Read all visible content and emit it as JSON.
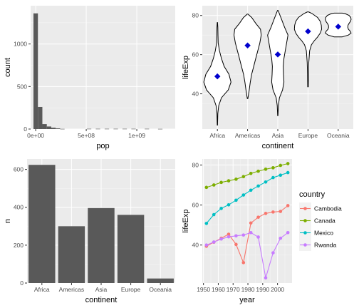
{
  "chart_data": [
    {
      "type": "bar",
      "subtype": "histogram",
      "xlabel": "pop",
      "ylabel": "count",
      "xlim": [
        -50000000,
        1380000000
      ],
      "ylim": [
        0,
        1450
      ],
      "x_ticks": [
        {
          "value": 0,
          "label": "0e+00"
        },
        {
          "value": 500000000,
          "label": "5e+08"
        },
        {
          "value": 1000000000,
          "label": "1e+09"
        }
      ],
      "y_ticks": [
        {
          "value": 0,
          "label": "0"
        },
        {
          "value": 500,
          "label": "500"
        },
        {
          "value": 1000,
          "label": "1000"
        }
      ],
      "bin_width": 44000000,
      "bins": [
        {
          "start": -22000000,
          "count": 1360
        },
        {
          "start": 22000000,
          "count": 260
        },
        {
          "start": 66000000,
          "count": 58
        },
        {
          "start": 110000000,
          "count": 30
        },
        {
          "start": 154000000,
          "count": 16
        },
        {
          "start": 198000000,
          "count": 8
        },
        {
          "start": 242000000,
          "count": 2
        },
        {
          "start": 506000000,
          "count": 3
        },
        {
          "start": 594000000,
          "count": 3
        },
        {
          "start": 682000000,
          "count": 3
        },
        {
          "start": 770000000,
          "count": 3
        },
        {
          "start": 858000000,
          "count": 3
        },
        {
          "start": 946000000,
          "count": 3
        },
        {
          "start": 1078000000,
          "count": 3
        },
        {
          "start": 1210000000,
          "count": 2
        }
      ],
      "bar_color": "#595959",
      "grid": true
    },
    {
      "type": "violin",
      "xlabel": "continent",
      "ylabel": "lifeExp",
      "categories": [
        "Africa",
        "Americas",
        "Asia",
        "Europe",
        "Oceania"
      ],
      "ylim": [
        22,
        85
      ],
      "y_ticks": [
        {
          "value": 40,
          "label": "40"
        },
        {
          "value": 60,
          "label": "60"
        },
        {
          "value": 80,
          "label": "80"
        }
      ],
      "means": [
        48.9,
        64.7,
        60.1,
        71.9,
        74.3
      ],
      "mean_marker_color": "#0000cd",
      "violins": [
        {
          "min": 23.6,
          "max": 76.4,
          "profile": [
            [
              24,
              0.01
            ],
            [
              30,
              0.03
            ],
            [
              34,
              0.1
            ],
            [
              38,
              0.3
            ],
            [
              42,
              0.8
            ],
            [
              46,
              1
            ],
            [
              50,
              0.85
            ],
            [
              54,
              0.5
            ],
            [
              58,
              0.3
            ],
            [
              62,
              0.15
            ],
            [
              66,
              0.06
            ],
            [
              70,
              0.04
            ],
            [
              74,
              0.03
            ],
            [
              76.4,
              0.01
            ]
          ]
        },
        {
          "min": 37.6,
          "max": 80.7,
          "profile": [
            [
              37.6,
              0.02
            ],
            [
              42,
              0.12
            ],
            [
              46,
              0.2
            ],
            [
              50,
              0.3
            ],
            [
              54,
              0.45
            ],
            [
              58,
              0.6
            ],
            [
              62,
              0.75
            ],
            [
              66,
              0.9
            ],
            [
              70,
              1
            ],
            [
              73,
              0.95
            ],
            [
              76,
              0.6
            ],
            [
              79,
              0.3
            ],
            [
              80.7,
              0.02
            ]
          ]
        },
        {
          "min": 28.8,
          "max": 82.6,
          "profile": [
            [
              28.8,
              0.01
            ],
            [
              34,
              0.04
            ],
            [
              38,
              0.12
            ],
            [
              42,
              0.35
            ],
            [
              46,
              0.45
            ],
            [
              50,
              0.42
            ],
            [
              54,
              0.4
            ],
            [
              58,
              0.45
            ],
            [
              62,
              0.55
            ],
            [
              66,
              0.65
            ],
            [
              70,
              0.75
            ],
            [
              74,
              0.5
            ],
            [
              78,
              0.28
            ],
            [
              82.6,
              0.02
            ]
          ]
        },
        {
          "min": 43.6,
          "max": 81.8,
          "profile": [
            [
              43.6,
              0.02
            ],
            [
              50,
              0.03
            ],
            [
              56,
              0.06
            ],
            [
              62,
              0.12
            ],
            [
              65,
              0.25
            ],
            [
              67,
              0.45
            ],
            [
              69,
              0.7
            ],
            [
              71,
              0.9
            ],
            [
              73,
              1
            ],
            [
              75,
              0.98
            ],
            [
              77,
              0.9
            ],
            [
              79,
              0.7
            ],
            [
              81,
              0.3
            ],
            [
              81.8,
              0.05
            ]
          ]
        },
        {
          "min": 69.1,
          "max": 81.2,
          "profile": [
            [
              69.1,
              0.3
            ],
            [
              70,
              0.75
            ],
            [
              71,
              0.95
            ],
            [
              72,
              0.88
            ],
            [
              73,
              0.75
            ],
            [
              74,
              0.7
            ],
            [
              75,
              0.72
            ],
            [
              76,
              0.8
            ],
            [
              77,
              0.9
            ],
            [
              78,
              0.95
            ],
            [
              79,
              0.92
            ],
            [
              80,
              0.8
            ],
            [
              81,
              0.5
            ],
            [
              81.2,
              0.3
            ]
          ]
        }
      ],
      "grid": true
    },
    {
      "type": "bar",
      "xlabel": "continent",
      "ylabel": "n",
      "categories": [
        "Africa",
        "Americas",
        "Asia",
        "Europe",
        "Oceania"
      ],
      "values": [
        624,
        300,
        396,
        360,
        24
      ],
      "ylim": [
        0,
        655
      ],
      "y_ticks": [
        {
          "value": 0,
          "label": "0"
        },
        {
          "value": 200,
          "label": "200"
        },
        {
          "value": 400,
          "label": "400"
        },
        {
          "value": 600,
          "label": "600"
        }
      ],
      "bar_color": "#595959",
      "grid": true
    },
    {
      "type": "line",
      "xlabel": "year",
      "ylabel": "lifeExp",
      "xlim": [
        1949.2,
        2009.8
      ],
      "ylim": [
        21,
        83
      ],
      "x_ticks": [
        {
          "value": 1950,
          "label": "1950"
        },
        {
          "value": 1960,
          "label": "1960"
        },
        {
          "value": 1970,
          "label": "1970"
        },
        {
          "value": 1980,
          "label": "1980"
        },
        {
          "value": 1990,
          "label": "1990"
        },
        {
          "value": 2000,
          "label": "2000"
        }
      ],
      "y_ticks": [
        {
          "value": 40,
          "label": "40"
        },
        {
          "value": 60,
          "label": "60"
        },
        {
          "value": 80,
          "label": "80"
        }
      ],
      "x": [
        1952,
        1957,
        1962,
        1967,
        1972,
        1977,
        1982,
        1987,
        1992,
        1997,
        2002,
        2007
      ],
      "legend_title": "country",
      "legend_position": "right",
      "series": [
        {
          "name": "Cambodia",
          "color": "#F8766D",
          "values": [
            39.4,
            41.4,
            43.4,
            45.4,
            40.3,
            31.2,
            51.0,
            53.9,
            55.8,
            56.5,
            56.8,
            59.7
          ]
        },
        {
          "name": "Canada",
          "color": "#7CAE00",
          "values": [
            68.8,
            70.0,
            71.3,
            72.1,
            72.9,
            74.2,
            75.8,
            76.9,
            77.9,
            78.6,
            79.8,
            80.7
          ]
        },
        {
          "name": "Mexico",
          "color": "#00BFC4",
          "values": [
            50.8,
            55.2,
            58.3,
            60.1,
            62.4,
            65.0,
            67.4,
            69.5,
            71.5,
            73.7,
            74.9,
            76.2
          ]
        },
        {
          "name": "Rwanda",
          "color": "#C77CFF",
          "values": [
            40.0,
            41.5,
            43.0,
            44.1,
            44.6,
            45.0,
            46.2,
            44.0,
            23.6,
            36.1,
            43.4,
            46.2
          ]
        }
      ],
      "grid": true
    }
  ]
}
